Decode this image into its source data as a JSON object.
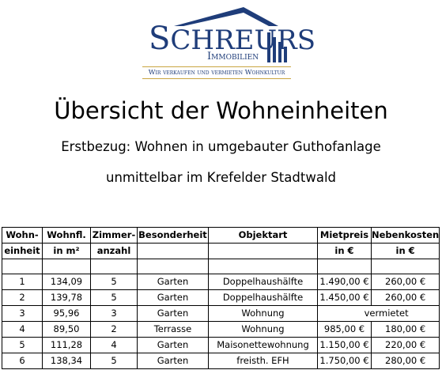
{
  "logo": {
    "brand_first": "S",
    "brand_rest": "CHREURS",
    "brand_sub": "Immobilien",
    "tagline": "Wir verkaufen und vermieten Wohnkultur",
    "color": "#1f3d7a",
    "accent": "#c9a542"
  },
  "heading": {
    "title": "Übersicht der Wohneinheiten",
    "subtitle1": "Erstbezug: Wohnen in umgebauter Guthofanlage",
    "subtitle2": "unmittelbar im Krefelder Stadtwald"
  },
  "table": {
    "headers_row1": [
      "Wohn-",
      "Wohnfl.",
      "Zimmer-",
      "Besonderheit",
      "Objektart",
      "Mietpreis",
      "Nebenkosten"
    ],
    "headers_row2": [
      "einheit",
      "in m²",
      "anzahl",
      "",
      "",
      "in €",
      "in €"
    ],
    "rows": [
      {
        "nr": "1",
        "flaeche": "134,09",
        "zimmer": "5",
        "besonderheit": "Garten",
        "objektart": "Doppelhaushälfte",
        "miete": "1.490,00 €",
        "nk": "260,00 €"
      },
      {
        "nr": "2",
        "flaeche": "139,78",
        "zimmer": "5",
        "besonderheit": "Garten",
        "objektart": "Doppelhaushälfte",
        "miete": "1.450,00 €",
        "nk": "260,00 €"
      },
      {
        "nr": "3",
        "flaeche": "95,96",
        "zimmer": "3",
        "besonderheit": "Garten",
        "objektart": "Wohnung",
        "vermietet": "vermietet"
      },
      {
        "nr": "4",
        "flaeche": "89,50",
        "zimmer": "2",
        "besonderheit": "Terrasse",
        "objektart": "Wohnung",
        "miete": "985,00 €",
        "nk": "180,00 €"
      },
      {
        "nr": "5",
        "flaeche": "111,28",
        "zimmer": "4",
        "besonderheit": "Garten",
        "objektart": "Maisonettewohnung",
        "miete": "1.150,00 €",
        "nk": "220,00 €"
      },
      {
        "nr": "6",
        "flaeche": "138,34",
        "zimmer": "5",
        "besonderheit": "Garten",
        "objektart": "freisth. EFH",
        "miete": "1.750,00 €",
        "nk": "280,00 €"
      }
    ]
  }
}
